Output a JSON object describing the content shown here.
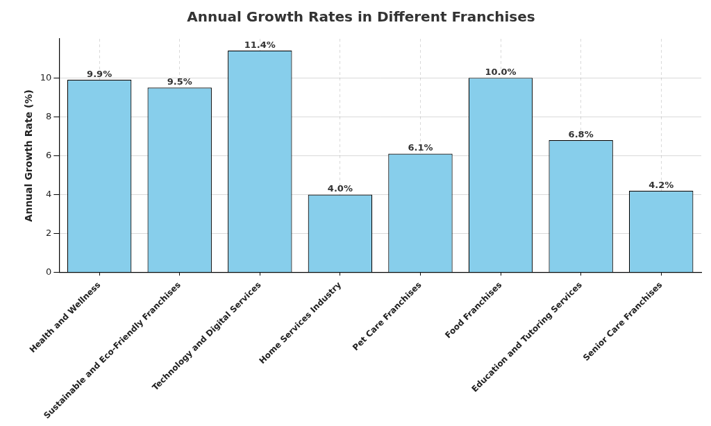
{
  "chart_data": {
    "type": "bar",
    "title": "Annual Growth Rates in Different Franchises",
    "y_label": "Annual Growth Rate (%)",
    "categories": [
      "Health and Wellness",
      "Sustainable and Eco-Friendly Franchises",
      "Technology and Digital Services",
      "Home Services Industry",
      "Pet Care Franchises",
      "Food Franchises",
      "Education and Tutoring Services",
      "Senior Care Franchises"
    ],
    "values": [
      9.9,
      9.5,
      11.4,
      4.0,
      6.1,
      10.0,
      6.8,
      4.2
    ],
    "value_labels": [
      "9.9%",
      "9.5%",
      "11.4%",
      "4.0%",
      "6.1%",
      "10.0%",
      "6.8%",
      "4.2%"
    ],
    "color": "#87ceeb",
    "ylim": [
      0,
      12
    ],
    "yticks": [
      0,
      2,
      4,
      6,
      8,
      10
    ],
    "grid": true,
    "data_labels": true
  }
}
